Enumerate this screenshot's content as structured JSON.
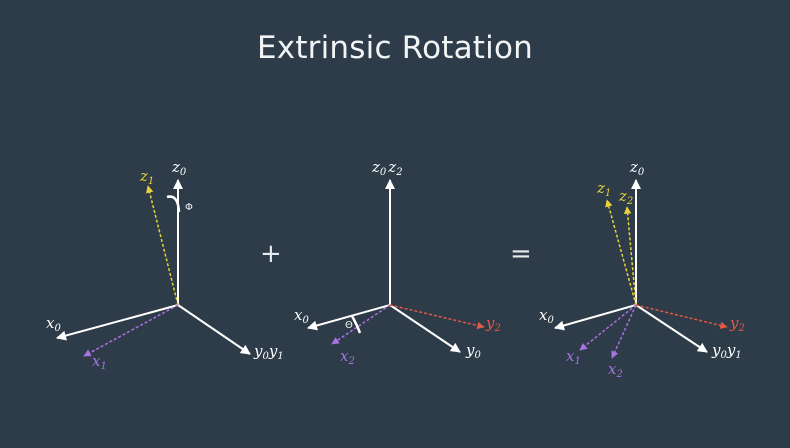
{
  "title": "Extrinsic Rotation",
  "colors": {
    "background": "#2e3b48",
    "axis_white": "#ffffff",
    "z_rotated": "#e8d23a",
    "x_rotated": "#a774e0",
    "y_rotated": "#e05a45"
  },
  "operators": {
    "plus": "+",
    "equals": "="
  },
  "panels": {
    "first": {
      "labels": {
        "z0": "z",
        "z0_sub": "0",
        "z1": "z",
        "z1_sub": "1",
        "x0": "x",
        "x0_sub": "0",
        "x1": "x",
        "x1_sub": "1",
        "y0": "y",
        "y0_sub": "0",
        "y1": "y",
        "y1_sub": "1",
        "angle": "Φ"
      }
    },
    "second": {
      "labels": {
        "z0": "z",
        "z0_sub": "0",
        "z2": "z",
        "z2_sub": "2",
        "x0": "x",
        "x0_sub": "0",
        "x2": "x",
        "x2_sub": "2",
        "y0": "y",
        "y0_sub": "0",
        "y2": "y",
        "y2_sub": "2",
        "angle": "Θ"
      }
    },
    "result": {
      "labels": {
        "z0": "z",
        "z0_sub": "0",
        "z1": "z",
        "z1_sub": "1",
        "z2": "z",
        "z2_sub": "2",
        "x0": "x",
        "x0_sub": "0",
        "x1": "x",
        "x1_sub": "1",
        "x2": "x",
        "x2_sub": "2",
        "y0": "y",
        "y0_sub": "0",
        "y1": "y",
        "y1_sub": "1",
        "y2": "y",
        "y2_sub": "2"
      }
    }
  }
}
